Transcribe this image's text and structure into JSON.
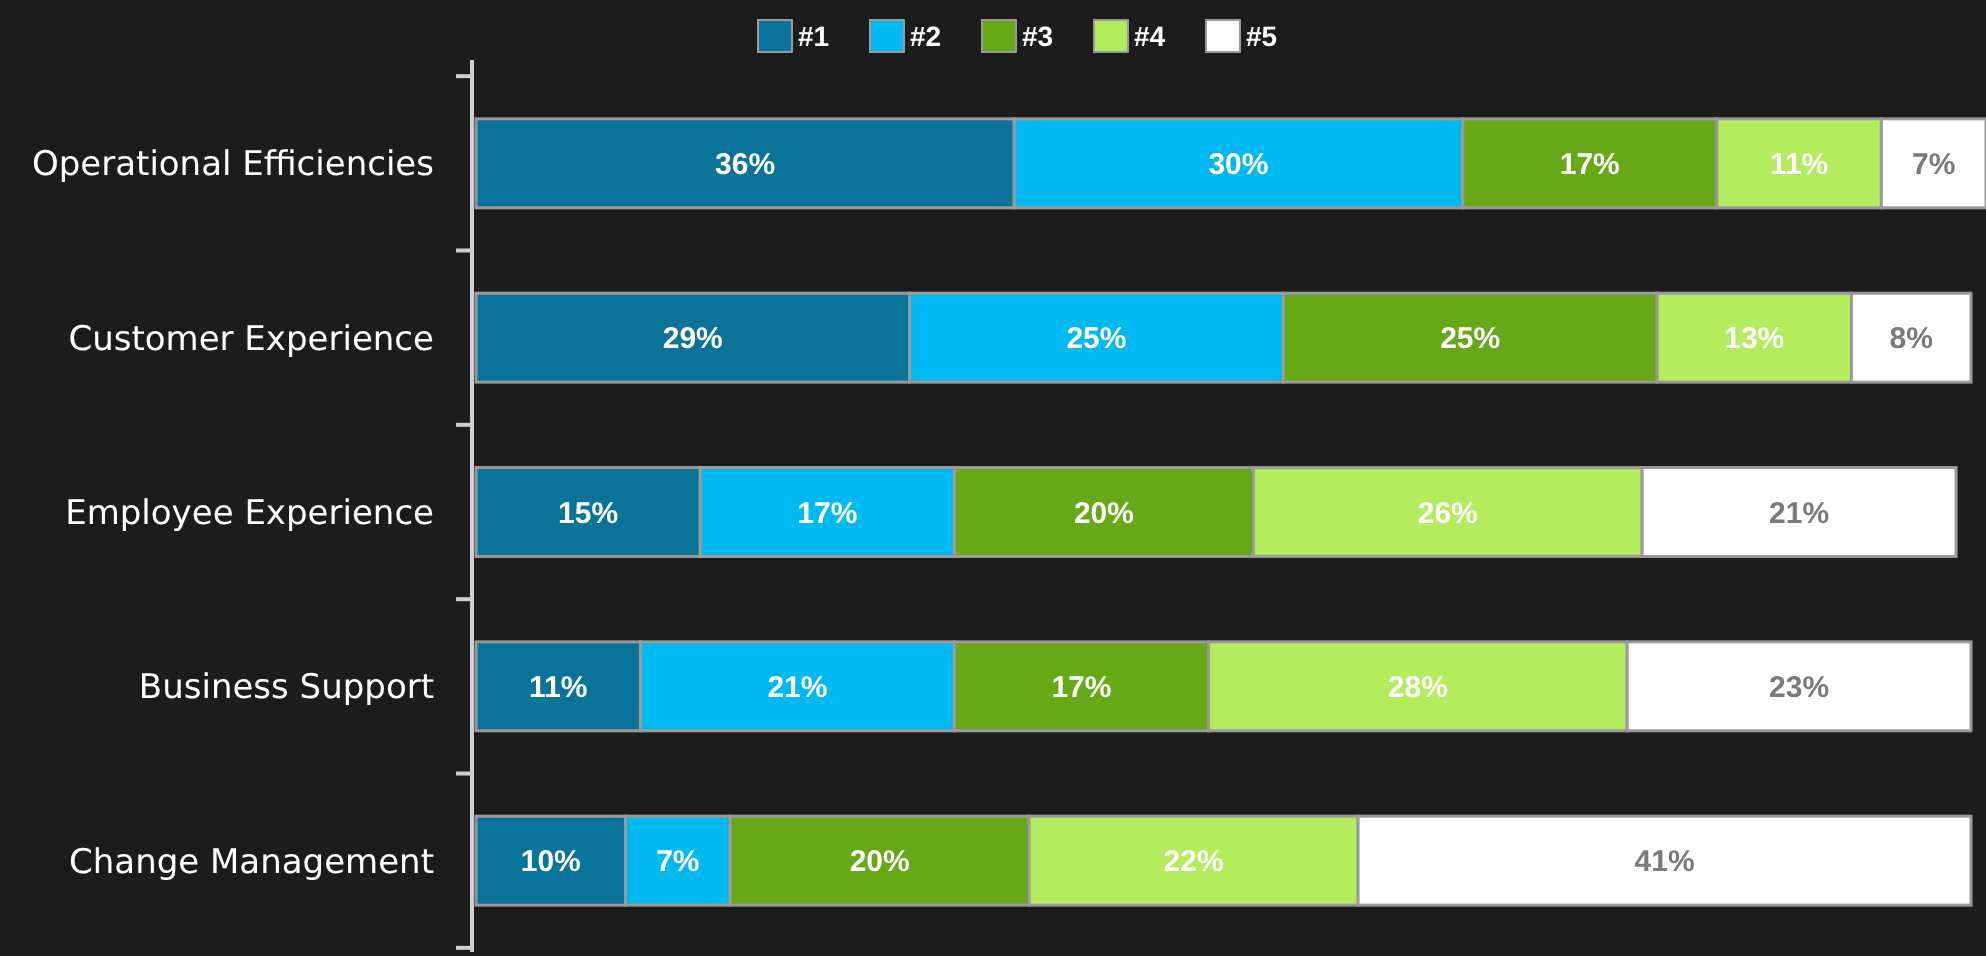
{
  "chart_data": {
    "type": "bar",
    "orientation": "horizontal",
    "stacked": true,
    "legend": "top",
    "tick_labels": "y",
    "grid": false,
    "categories": [
      "Operational Efficiencies",
      "Customer Experience",
      "Employee Experience",
      "Business Support",
      "Change Management"
    ],
    "xlim": [
      0,
      101
    ],
    "series": [
      {
        "name": "#1",
        "color": "#0a7399",
        "values": [
          36,
          29,
          15,
          11,
          10
        ],
        "value_labels": [
          "36%",
          "29%",
          "15%",
          "11%",
          "10%"
        ]
      },
      {
        "name": "#2",
        "color": "#00b9f1",
        "values": [
          30,
          25,
          17,
          21,
          7
        ],
        "value_labels": [
          "30%",
          "25%",
          "17%",
          "21%",
          "7%"
        ]
      },
      {
        "name": "#3",
        "color": "#66a815",
        "values": [
          17,
          25,
          20,
          17,
          20
        ],
        "value_labels": [
          "17%",
          "25%",
          "20%",
          "17%",
          "20%"
        ]
      },
      {
        "name": "#4",
        "color": "#b3ec5c",
        "values": [
          11,
          13,
          26,
          28,
          22
        ],
        "value_labels": [
          "11%",
          "13%",
          "26%",
          "28%",
          "22%"
        ]
      },
      {
        "name": "#5",
        "color": "#ffffff",
        "values": [
          7,
          8,
          21,
          23,
          41
        ],
        "value_labels": [
          "7%",
          "8%",
          "21%",
          "23%",
          "41%"
        ]
      }
    ]
  }
}
